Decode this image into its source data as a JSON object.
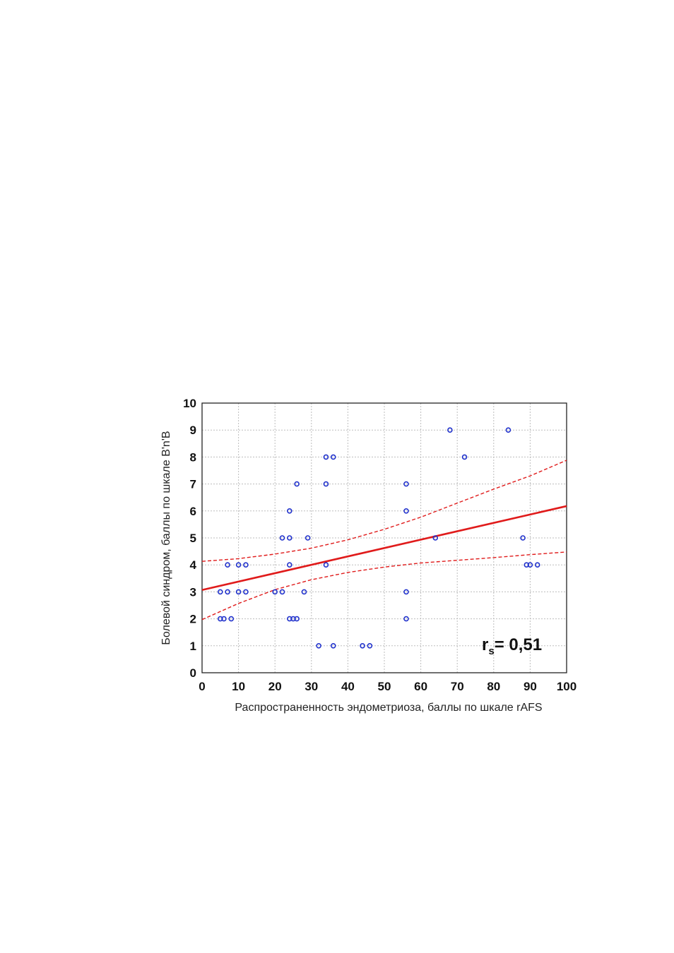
{
  "chart_data": {
    "type": "scatter",
    "title": "",
    "xlabel": "Распространенность эндометриоза, баллы по шкале rAFS",
    "ylabel": "Болевой синдром, баллы по шкале В'n'В",
    "xlim": [
      0,
      100
    ],
    "ylim": [
      0,
      10
    ],
    "xticks": [
      0,
      10,
      20,
      30,
      40,
      50,
      60,
      70,
      80,
      90,
      100
    ],
    "yticks": [
      0,
      1,
      2,
      3,
      4,
      5,
      6,
      7,
      8,
      9,
      10
    ],
    "grid": true,
    "points": [
      {
        "x": 5,
        "y": 2
      },
      {
        "x": 6,
        "y": 2
      },
      {
        "x": 8,
        "y": 2
      },
      {
        "x": 5,
        "y": 3
      },
      {
        "x": 7,
        "y": 3
      },
      {
        "x": 10,
        "y": 3
      },
      {
        "x": 12,
        "y": 3
      },
      {
        "x": 7,
        "y": 4
      },
      {
        "x": 10,
        "y": 4
      },
      {
        "x": 12,
        "y": 4
      },
      {
        "x": 20,
        "y": 3
      },
      {
        "x": 22,
        "y": 3
      },
      {
        "x": 28,
        "y": 3
      },
      {
        "x": 24,
        "y": 2
      },
      {
        "x": 25,
        "y": 2
      },
      {
        "x": 26,
        "y": 2
      },
      {
        "x": 24,
        "y": 4
      },
      {
        "x": 22,
        "y": 5
      },
      {
        "x": 24,
        "y": 5
      },
      {
        "x": 29,
        "y": 5
      },
      {
        "x": 24,
        "y": 6
      },
      {
        "x": 26,
        "y": 7
      },
      {
        "x": 34,
        "y": 7
      },
      {
        "x": 34,
        "y": 8
      },
      {
        "x": 36,
        "y": 8
      },
      {
        "x": 34,
        "y": 4
      },
      {
        "x": 32,
        "y": 1
      },
      {
        "x": 36,
        "y": 1
      },
      {
        "x": 44,
        "y": 1
      },
      {
        "x": 46,
        "y": 1
      },
      {
        "x": 56,
        "y": 2
      },
      {
        "x": 56,
        "y": 3
      },
      {
        "x": 56,
        "y": 6
      },
      {
        "x": 56,
        "y": 7
      },
      {
        "x": 64,
        "y": 5
      },
      {
        "x": 68,
        "y": 9
      },
      {
        "x": 72,
        "y": 8
      },
      {
        "x": 84,
        "y": 9
      },
      {
        "x": 88,
        "y": 5
      },
      {
        "x": 89,
        "y": 4
      },
      {
        "x": 90,
        "y": 4
      },
      {
        "x": 92,
        "y": 4
      }
    ],
    "regression_line": {
      "x": [
        0,
        100
      ],
      "y": [
        3.07,
        6.18
      ]
    },
    "confidence_band": {
      "x": [
        0,
        10,
        20,
        30,
        40,
        50,
        60,
        70,
        80,
        90,
        100
      ],
      "upper": [
        4.13,
        4.23,
        4.4,
        4.62,
        4.93,
        5.32,
        5.77,
        6.29,
        6.81,
        7.3,
        7.88
      ],
      "lower": [
        1.97,
        2.57,
        3.08,
        3.45,
        3.72,
        3.92,
        4.07,
        4.17,
        4.27,
        4.38,
        4.48
      ]
    },
    "annotation": {
      "r": "r",
      "sub": "s",
      "value": "= 0,51"
    },
    "colors": {
      "points": "#2233cc",
      "line": "#e01b1b",
      "grid": "#bdbdbd"
    }
  }
}
